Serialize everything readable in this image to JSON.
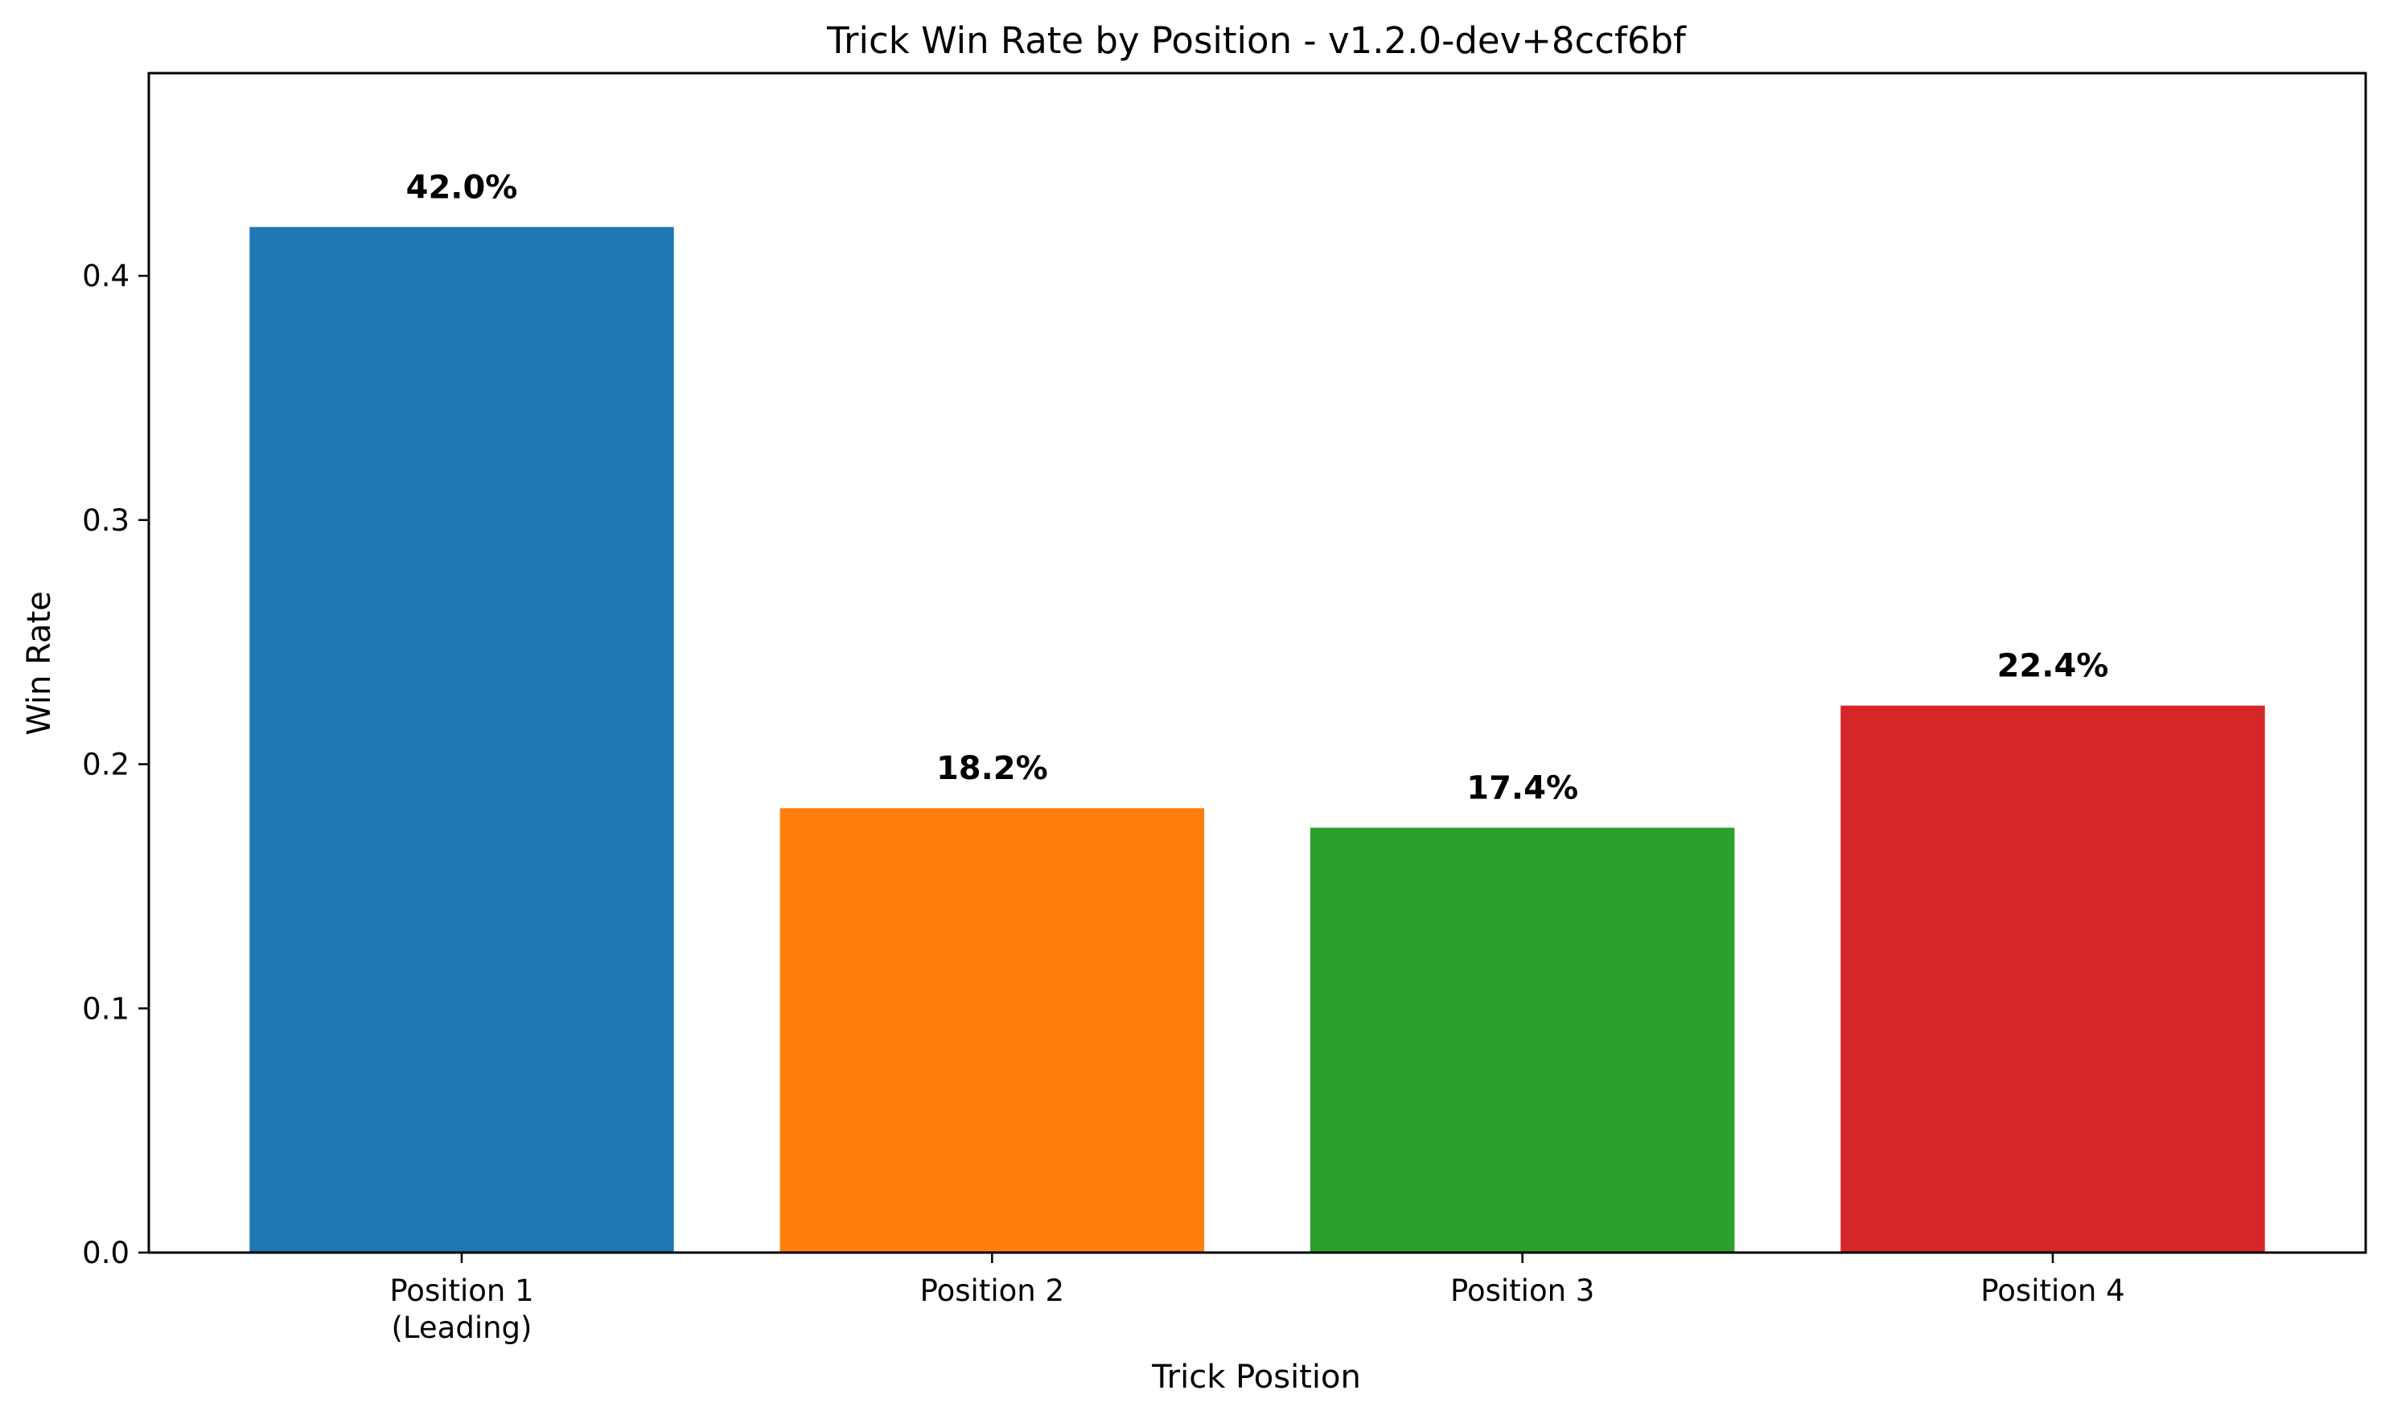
{
  "chart_data": {
    "type": "bar",
    "title": "Trick Win Rate by Position - v1.2.0-dev+8ccf6bf",
    "xlabel": "Trick Position",
    "ylabel": "Win Rate",
    "categories": [
      [
        "Position 1",
        "(Leading)"
      ],
      [
        "Position 2"
      ],
      [
        "Position 3"
      ],
      [
        "Position 4"
      ]
    ],
    "values": [
      0.42,
      0.182,
      0.174,
      0.224
    ],
    "data_labels": [
      "42.0%",
      "18.2%",
      "17.4%",
      "22.4%"
    ],
    "colors": [
      "#1f77b4",
      "#ff7f0e",
      "#2ca02c",
      "#d62728"
    ],
    "ylim": [
      0,
      0.483
    ],
    "yticks": [
      0.0,
      0.1,
      0.2,
      0.3,
      0.4
    ],
    "ytick_labels": [
      "0.0",
      "0.1",
      "0.2",
      "0.3",
      "0.4"
    ],
    "grid": false,
    "legend": "none"
  }
}
